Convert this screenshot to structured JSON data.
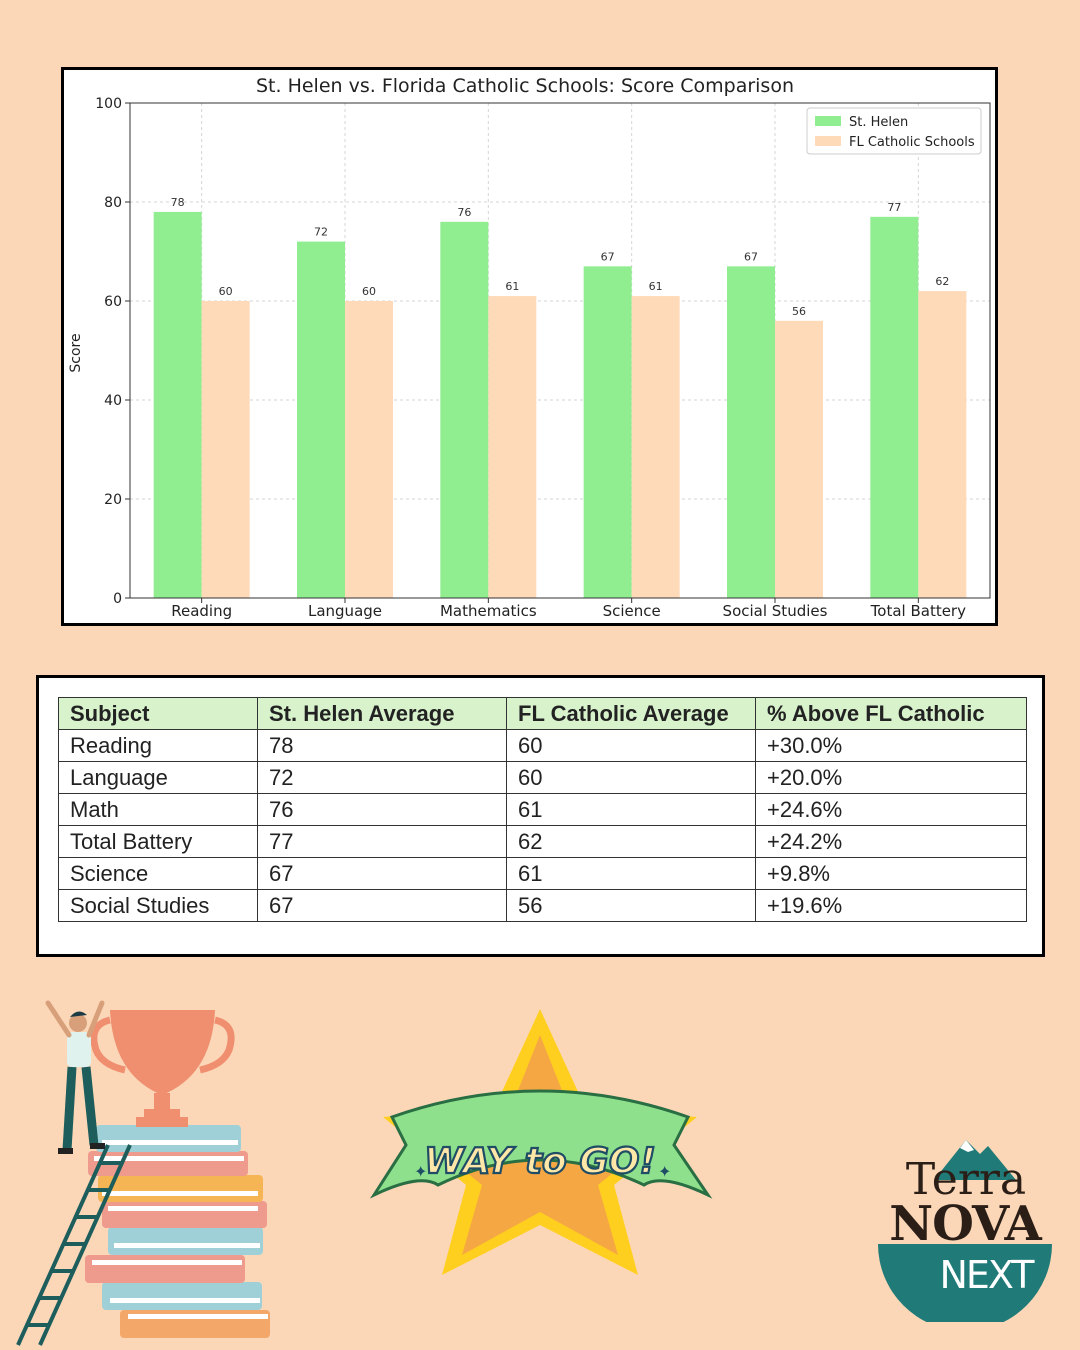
{
  "chart_data": {
    "type": "bar",
    "title": "St. Helen vs. Florida Catholic Schools: Score Comparison",
    "xlabel": "",
    "ylabel": "Score",
    "ylim": [
      0,
      100
    ],
    "yticks": [
      0,
      20,
      40,
      60,
      80,
      100
    ],
    "grid": true,
    "legend_position": "top-right",
    "categories": [
      "Reading",
      "Language",
      "Mathematics",
      "Science",
      "Social Studies",
      "Total Battery"
    ],
    "series": [
      {
        "name": "St. Helen",
        "color": "#90ee90",
        "values": [
          78,
          72,
          76,
          67,
          67,
          77
        ]
      },
      {
        "name": "FL Catholic Schools",
        "color": "#ffdab9",
        "values": [
          60,
          60,
          61,
          61,
          56,
          62
        ]
      }
    ]
  },
  "table": {
    "headers": [
      "Subject",
      "St. Helen Average",
      "FL Catholic Average",
      "% Above FL Catholic"
    ],
    "rows": [
      [
        "Reading",
        "78",
        "60",
        "+30.0%"
      ],
      [
        "Language",
        "72",
        "60",
        "+20.0%"
      ],
      [
        "Math",
        "76",
        "61",
        "+24.6%"
      ],
      [
        "Total Battery",
        "77",
        "62",
        "+24.2%"
      ],
      [
        "Science",
        "67",
        "61",
        "+9.8%"
      ],
      [
        "Social Studies",
        "67",
        "56",
        "+19.6%"
      ]
    ]
  },
  "badge": {
    "text": "WAY to GO!"
  },
  "logo": {
    "line1": "Terra",
    "line2": "NOVA",
    "line3": "NEXT"
  },
  "illustrations": {
    "left": "trophy-books-icon",
    "center": "star-ribbon-badge",
    "right": "terra-nova-logo"
  },
  "colors": {
    "background": "#fbd7b8",
    "header_green": "#d8f2cc",
    "logo_teal": "#1f7a78"
  }
}
